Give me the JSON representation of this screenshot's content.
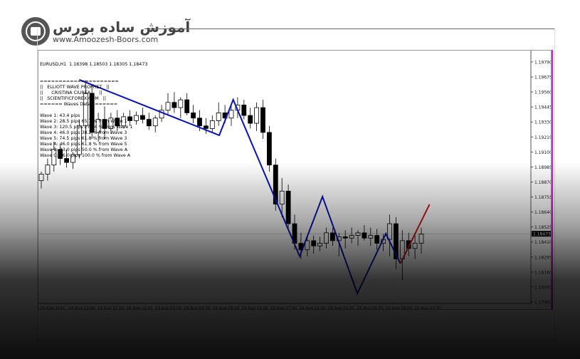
{
  "logo": {
    "name_fa": "آموزش ساده بورس",
    "url": "www.Amoozesh-Boors.com"
  },
  "chart": {
    "symbol_line": "EURUSD,H1  1.18398 1.18503 1.18305 1.18473",
    "indicator_lines": [
      "=====================",
      "||   ELLIOTT WAVE PROPHET   ||",
      "||      CRISTINA CIUREA      ||",
      "||   SCIENTIFICFOREX.COM   ||",
      "====== Waves Data : ======",
      "",
      "Wave 1: 43.4 pips",
      "Wave 2: 28.5 pips 65.7 % from Wave 1",
      "Wave 3: 120.5 pips 277.4 % from Wave 1",
      "Wave 4: 46.0 pips 38.2 % from Wave 3",
      "Wave 5: 74.5 pips 61.8 % from Wave 3",
      "Wave A: 46.0 pips 61.8 % from Wave 5",
      "Wave B: 23.0 pips 50.0 % from Wave A",
      "Wave C: 46.0 pips 100.0 % from Wave A"
    ],
    "current_price": "1.18473",
    "price_ticks": [
      "1.19790",
      "1.19675",
      "1.19560",
      "1.19445",
      "1.19330",
      "1.19215",
      "1.19100",
      "1.18985",
      "1.18870",
      "1.18755",
      "1.18640",
      "1.18525",
      "1.18410",
      "1.18295",
      "1.18180",
      "1.18065",
      "1.17950"
    ],
    "time_ticks": [
      "18 Aug 2020",
      "18 Aug 13:00",
      "18 Aug 17:00",
      "18 Aug 21:00",
      "19 Aug 01:00",
      "19 Aug 05:00",
      "19 Aug 09:00",
      "19 Aug 13:00",
      "19 Aug 17:00",
      "19 Aug 21:00",
      "20 Aug 01:00",
      "20 Aug 05:00",
      "20 Aug 09:00",
      "20 Aug 13:00"
    ],
    "colors": {
      "wave": "#0a14b4",
      "projection": "#d01818",
      "indicator_bar": "#e020e0",
      "price_label_bg": "#000000"
    },
    "candles": [
      [
        1.1888,
        1.1895,
        1.1882,
        1.1893
      ],
      [
        1.1893,
        1.1905,
        1.1888,
        1.19
      ],
      [
        1.19,
        1.1918,
        1.1895,
        1.1912
      ],
      [
        1.1912,
        1.1916,
        1.19,
        1.1905
      ],
      [
        1.1905,
        1.1912,
        1.1898,
        1.1902
      ],
      [
        1.1902,
        1.191,
        1.1897,
        1.1908
      ],
      [
        1.1908,
        1.1935,
        1.1905,
        1.193
      ],
      [
        1.193,
        1.1965,
        1.1918,
        1.1955
      ],
      [
        1.1955,
        1.1962,
        1.192,
        1.1925
      ],
      [
        1.1925,
        1.194,
        1.1918,
        1.1935
      ],
      [
        1.1935,
        1.1945,
        1.192,
        1.1928
      ],
      [
        1.1928,
        1.194,
        1.1924,
        1.1936
      ],
      [
        1.1936,
        1.1942,
        1.1926,
        1.193
      ],
      [
        1.193,
        1.194,
        1.1928,
        1.1937
      ],
      [
        1.1937,
        1.1942,
        1.193,
        1.1934
      ],
      [
        1.1934,
        1.1941,
        1.1931,
        1.1938
      ],
      [
        1.1938,
        1.1944,
        1.1932,
        1.1935
      ],
      [
        1.1935,
        1.194,
        1.1927,
        1.193
      ],
      [
        1.193,
        1.1938,
        1.1925,
        1.1936
      ],
      [
        1.1936,
        1.1946,
        1.1933,
        1.1942
      ],
      [
        1.1942,
        1.1955,
        1.1938,
        1.1948
      ],
      [
        1.1948,
        1.1956,
        1.194,
        1.1944
      ],
      [
        1.1944,
        1.1952,
        1.1936,
        1.195
      ],
      [
        1.195,
        1.1955,
        1.1938,
        1.194
      ],
      [
        1.194,
        1.1946,
        1.1932,
        1.1936
      ],
      [
        1.1936,
        1.1942,
        1.1926,
        1.193
      ],
      [
        1.193,
        1.1936,
        1.1924,
        1.1928
      ],
      [
        1.1928,
        1.1938,
        1.1925,
        1.1934
      ],
      [
        1.1934,
        1.1948,
        1.193,
        1.194
      ],
      [
        1.194,
        1.1946,
        1.1932,
        1.1936
      ],
      [
        1.1936,
        1.1945,
        1.193,
        1.1942
      ],
      [
        1.1942,
        1.1952,
        1.1936,
        1.1946
      ],
      [
        1.1946,
        1.195,
        1.1935,
        1.1938
      ],
      [
        1.1938,
        1.1944,
        1.1928,
        1.1932
      ],
      [
        1.1932,
        1.1948,
        1.1926,
        1.1944
      ],
      [
        1.1944,
        1.195,
        1.192,
        1.1925
      ],
      [
        1.1925,
        1.193,
        1.1895,
        1.19
      ],
      [
        1.19,
        1.1905,
        1.1865,
        1.187
      ],
      [
        1.187,
        1.189,
        1.186,
        1.188
      ],
      [
        1.188,
        1.1885,
        1.185,
        1.1855
      ],
      [
        1.1855,
        1.1862,
        1.1835,
        1.184
      ],
      [
        1.184,
        1.1848,
        1.1828,
        1.1835
      ],
      [
        1.1835,
        1.1845,
        1.183,
        1.1842
      ],
      [
        1.1842,
        1.1846,
        1.1832,
        1.1838
      ],
      [
        1.1838,
        1.1845,
        1.1834,
        1.184
      ],
      [
        1.184,
        1.1852,
        1.1836,
        1.1848
      ],
      [
        1.1848,
        1.1852,
        1.1838,
        1.1842
      ],
      [
        1.1842,
        1.1848,
        1.183,
        1.1845
      ],
      [
        1.1845,
        1.185,
        1.1836,
        1.1844
      ],
      [
        1.1844,
        1.1852,
        1.184,
        1.1846
      ],
      [
        1.1846,
        1.185,
        1.1838,
        1.1848
      ],
      [
        1.1848,
        1.1854,
        1.1842,
        1.1844
      ],
      [
        1.1844,
        1.1852,
        1.1838,
        1.1846
      ],
      [
        1.1846,
        1.1851,
        1.1835,
        1.184
      ],
      [
        1.184,
        1.1847,
        1.1834,
        1.1843
      ],
      [
        1.1843,
        1.1862,
        1.183,
        1.1855
      ],
      [
        1.1855,
        1.186,
        1.182,
        1.1828
      ],
      [
        1.1828,
        1.185,
        1.1812,
        1.1842
      ],
      [
        1.1842,
        1.1848,
        1.183,
        1.1836
      ],
      [
        1.1836,
        1.1846,
        1.1828,
        1.184
      ],
      [
        1.184,
        1.1852,
        1.1832,
        1.1847
      ]
    ],
    "waves": [
      [
        6.0,
        1.19654
      ],
      [
        28.1,
        1.19228
      ],
      [
        30.3,
        1.19501
      ],
      [
        40.8,
        1.183
      ],
      [
        44.4,
        1.18758
      ],
      [
        49.9,
        1.18015
      ],
      [
        54.4,
        1.18474
      ],
      [
        56.7,
        1.18245
      ]
    ],
    "projection": [
      [
        56.7,
        1.18245
      ],
      [
        61.3,
        1.18698
      ]
    ]
  }
}
